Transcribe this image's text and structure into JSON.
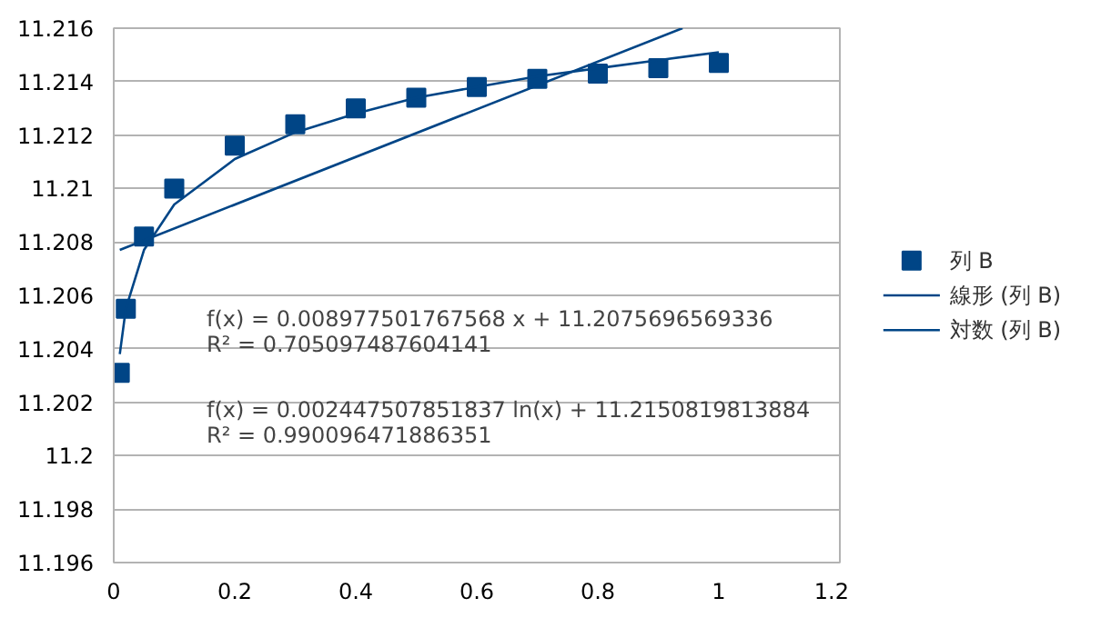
{
  "chart_data": {
    "type": "scatter",
    "marker": "square",
    "grid": "y",
    "legend": "right",
    "xlim": [
      0,
      1.2
    ],
    "xticks": [
      0,
      0.2,
      0.4,
      0.6,
      0.8,
      1,
      1.2
    ],
    "ylim": [
      11.196,
      11.216
    ],
    "yticks": [
      11.196,
      11.198,
      11.2,
      11.202,
      11.204,
      11.206,
      11.208,
      11.21,
      11.212,
      11.214,
      11.216
    ],
    "series": [
      {
        "name": "列 B",
        "color": "#004586",
        "x": [
          0.01,
          0.02,
          0.05,
          0.1,
          0.2,
          0.3,
          0.4,
          0.5,
          0.6,
          0.7,
          0.8,
          0.9,
          1.0
        ],
        "values": [
          11.2031,
          11.2055,
          11.2082,
          11.21,
          11.2116,
          11.2124,
          11.213,
          11.2134,
          11.2138,
          11.2141,
          11.2143,
          11.2145,
          11.2147
        ]
      },
      {
        "name": "線形 (列 B)",
        "type": "line",
        "marker": "none",
        "color": "#004586",
        "x": [
          0.01,
          0.94
        ],
        "values": [
          11.2077,
          11.216
        ]
      },
      {
        "name": "対数 (列 B)",
        "type": "line",
        "marker": "none",
        "color": "#004586",
        "x": [
          0.01,
          0.02,
          0.05,
          0.1,
          0.2,
          0.3,
          0.4,
          0.5,
          0.6,
          0.7,
          0.8,
          0.9,
          1.0
        ],
        "values": [
          11.2038,
          11.2055,
          11.2077,
          11.2094,
          11.2111,
          11.2121,
          11.2128,
          11.2134,
          11.2138,
          11.2142,
          11.2145,
          11.2148,
          11.2151
        ]
      }
    ],
    "annotations": [
      "f(x) = 0.008977501767568 x + 11.2075696569336",
      "R² = 0.705097487604141",
      "f(x) = 0.002447507851837 ln(x) + 11.2150819813884",
      "R² = 0.990096471886351"
    ]
  }
}
